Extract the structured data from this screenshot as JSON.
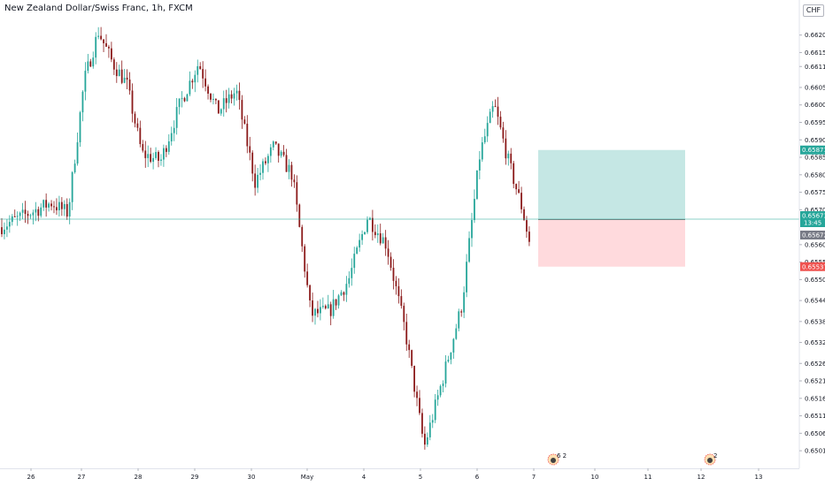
{
  "header": {
    "title": "New Zealand Dollar/Swiss Franc, 1h, FXCM",
    "currency": "CHF"
  },
  "colors": {
    "up": "#26a69a",
    "down": "#8b1a1a",
    "axis_text": "#131722",
    "current_price_line": "#26a69a",
    "target_zone": "#b2dfdb",
    "stop_zone": "#ffcdd2",
    "target_label": "#26a69a",
    "stop_label": "#ef5350",
    "current_label": "#26a69a",
    "entry_label": "#787b86"
  },
  "chart_data": {
    "type": "candlestick",
    "symbol": "New Zealand Dollar/Swiss Franc",
    "interval": "1h",
    "source": "FXCM",
    "x_ticks": [
      "26",
      "27",
      "28",
      "29",
      "30",
      "May",
      "4",
      "5",
      "6",
      "7",
      "10",
      "11",
      "12",
      "13"
    ],
    "y_ticks": [
      "0.66200",
      "0.66150",
      "0.66110",
      "0.66050",
      "0.66000",
      "0.65950",
      "0.65900",
      "0.65850",
      "0.65800",
      "0.65750",
      "0.65700",
      "0.65600",
      "0.65550",
      "0.65500",
      "0.65440",
      "0.65380",
      "0.65320",
      "0.65260",
      "0.65210",
      "0.65160",
      "0.65110",
      "0.65060",
      "0.65010"
    ],
    "ylim": [
      0.6499,
      0.6627
    ],
    "path": [
      {
        "x": "26",
        "y": 0.6565
      },
      {
        "x": "26",
        "y": 0.6572
      },
      {
        "x": "26",
        "y": 0.6569
      },
      {
        "x": "27",
        "y": 0.6607
      },
      {
        "x": "27",
        "y": 0.6621
      },
      {
        "x": "27",
        "y": 0.6612
      },
      {
        "x": "27",
        "y": 0.6606
      },
      {
        "x": "28",
        "y": 0.6586
      },
      {
        "x": "28",
        "y": 0.6584
      },
      {
        "x": "28",
        "y": 0.66
      },
      {
        "x": "29",
        "y": 0.6612
      },
      {
        "x": "29",
        "y": 0.6598
      },
      {
        "x": "29",
        "y": 0.6604
      },
      {
        "x": "30",
        "y": 0.6578
      },
      {
        "x": "30",
        "y": 0.6588
      },
      {
        "x": "30",
        "y": 0.658
      },
      {
        "x": "May",
        "y": 0.654
      },
      {
        "x": "May",
        "y": 0.6541
      },
      {
        "x": "May",
        "y": 0.655
      },
      {
        "x": "4",
        "y": 0.6568
      },
      {
        "x": "4",
        "y": 0.656
      },
      {
        "x": "4",
        "y": 0.6535
      },
      {
        "x": "5",
        "y": 0.6502
      },
      {
        "x": "5",
        "y": 0.6522
      },
      {
        "x": "5",
        "y": 0.6543
      },
      {
        "x": "6",
        "y": 0.6586
      },
      {
        "x": "6",
        "y": 0.66
      },
      {
        "x": "6",
        "y": 0.6584
      },
      {
        "x": "6",
        "y": 0.657
      },
      {
        "x": "7",
        "y": 0.6547
      },
      {
        "x": "7",
        "y": 0.65673
      }
    ],
    "current_price": "0.65673",
    "countdown": "13:45",
    "position": {
      "type": "long",
      "start": "7",
      "end": "11",
      "entry": "0.65672",
      "target": "0.65871",
      "stop": "0.65537"
    },
    "events": [
      {
        "x": "7",
        "text": "6 2"
      },
      {
        "x": "12",
        "text": "2"
      }
    ]
  }
}
